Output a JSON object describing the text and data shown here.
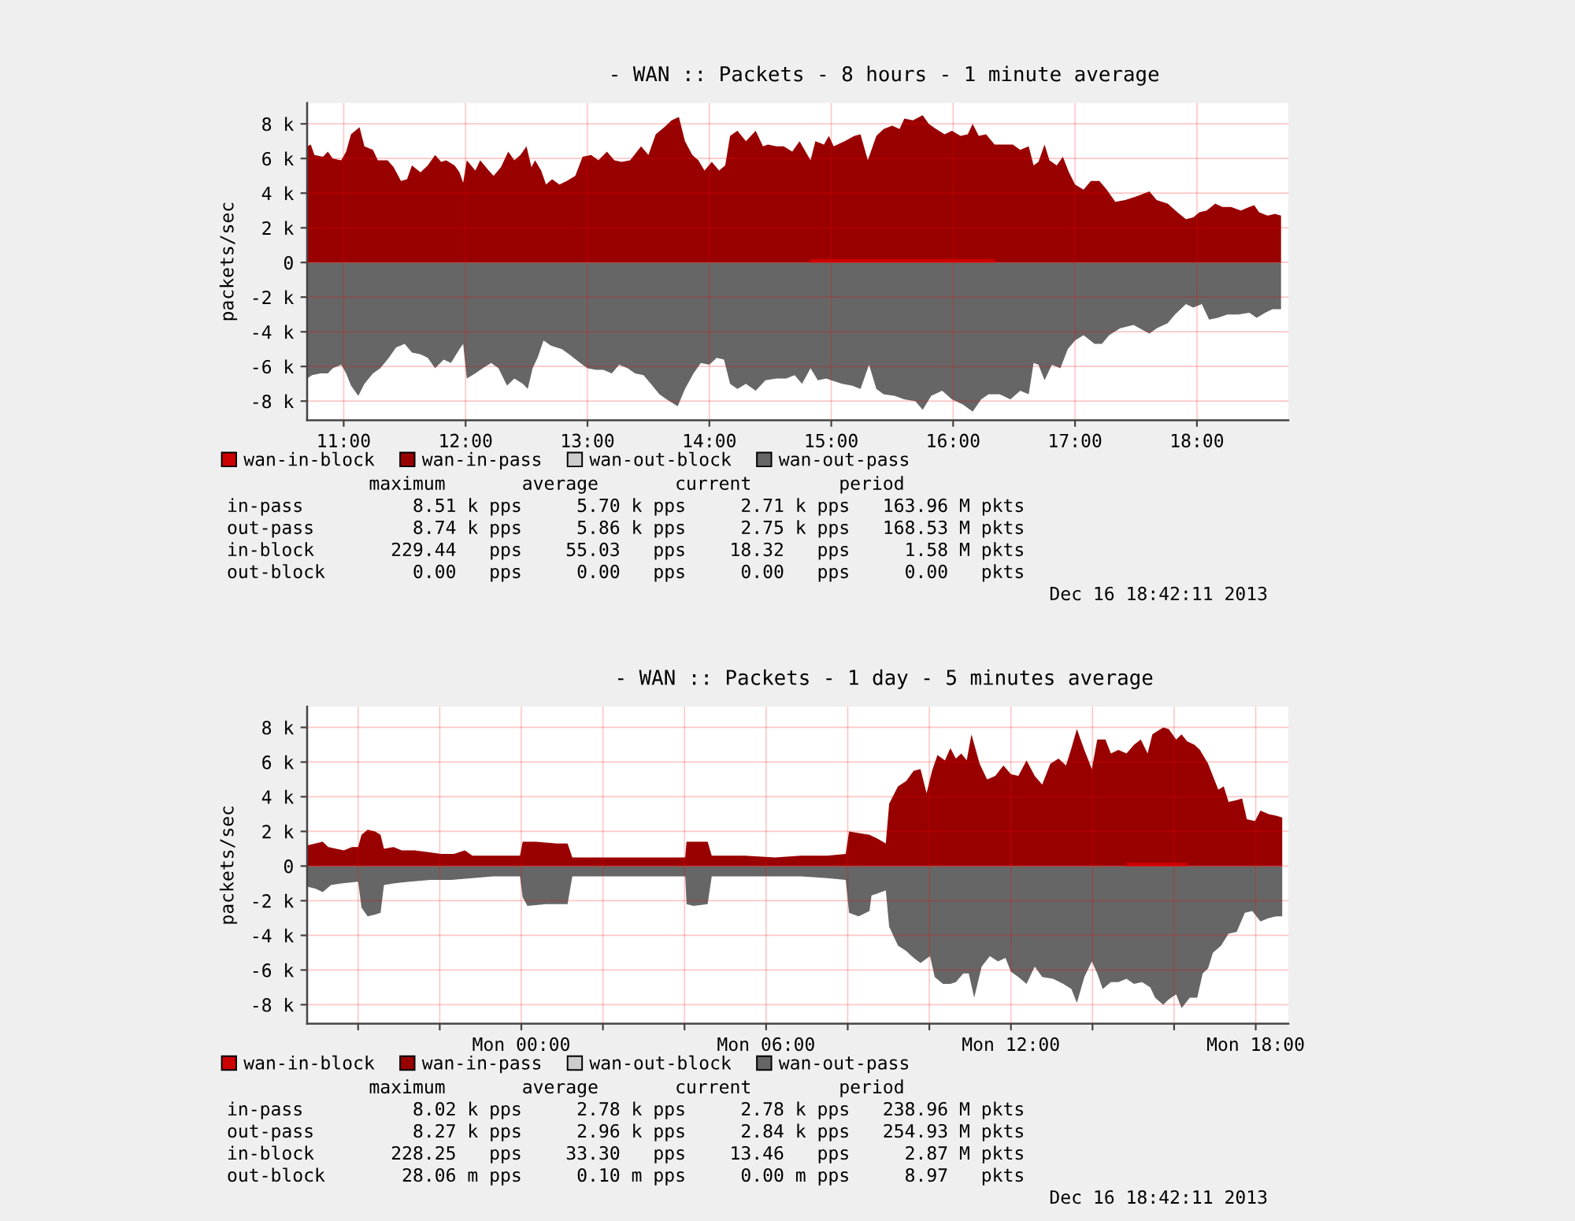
{
  "chart_data": [
    {
      "type": "area",
      "title": "- WAN :: Packets - 8 hours - 1 minute average",
      "ylabel": "packets/sec",
      "xlim": [
        10.7,
        18.75
      ],
      "xticks": [
        {
          "value": 11,
          "label": "11:00"
        },
        {
          "value": 12,
          "label": "12:00"
        },
        {
          "value": 13,
          "label": "13:00"
        },
        {
          "value": 14,
          "label": "14:00"
        },
        {
          "value": 15,
          "label": "15:00"
        },
        {
          "value": 16,
          "label": "16:00"
        },
        {
          "value": 17,
          "label": "17:00"
        },
        {
          "value": 18,
          "label": "18:00"
        }
      ],
      "ylim": [
        -9100,
        9200
      ],
      "yticks": [
        {
          "value": -8000,
          "label": "-8 k"
        },
        {
          "value": -6000,
          "label": "-6 k"
        },
        {
          "value": -4000,
          "label": "-4 k"
        },
        {
          "value": -2000,
          "label": "-2 k"
        },
        0,
        {
          "value": 2000,
          "label": "2 k"
        },
        {
          "value": 4000,
          "label": "4 k"
        },
        {
          "value": 6000,
          "label": "6 k"
        },
        {
          "value": 8000,
          "label": "8 k"
        }
      ],
      "grid": true,
      "legend": "bottom",
      "series": [
        {
          "name": "wan-in-block",
          "color": "#cc0000",
          "x": [
            10.7,
            14.82,
            14.83,
            16.34,
            16.35,
            18.69
          ],
          "values": [
            0,
            0,
            200,
            200,
            0,
            0
          ]
        },
        {
          "name": "wan-in-pass",
          "color": "#990000",
          "x": [
            10.7,
            10.73,
            10.76,
            10.83,
            10.87,
            10.91,
            10.98,
            11.02,
            11.06,
            11.13,
            11.17,
            11.24,
            11.28,
            11.36,
            11.41,
            11.47,
            11.52,
            11.56,
            11.63,
            11.69,
            11.75,
            11.8,
            11.84,
            11.91,
            11.95,
            11.98,
            12.01,
            12.08,
            12.12,
            12.19,
            12.23,
            12.29,
            12.35,
            12.4,
            12.45,
            12.5,
            12.54,
            12.57,
            12.62,
            12.66,
            12.71,
            12.77,
            12.83,
            12.9,
            12.96,
            13.03,
            13.09,
            13.16,
            13.22,
            13.28,
            13.35,
            13.44,
            13.5,
            13.56,
            13.63,
            13.69,
            13.75,
            13.8,
            13.86,
            13.91,
            13.96,
            14.02,
            14.08,
            14.13,
            14.17,
            14.23,
            14.3,
            14.38,
            14.44,
            14.48,
            14.55,
            14.61,
            14.68,
            14.74,
            14.83,
            14.87,
            14.94,
            14.98,
            15.02,
            15.11,
            15.19,
            15.24,
            15.3,
            15.37,
            15.43,
            15.5,
            15.56,
            15.6,
            15.67,
            15.75,
            15.8,
            15.86,
            15.93,
            15.99,
            16.06,
            16.12,
            16.16,
            16.21,
            16.27,
            16.34,
            16.42,
            16.49,
            16.55,
            16.62,
            16.66,
            16.7,
            16.75,
            16.79,
            16.85,
            16.9,
            16.95,
            17.0,
            17.07,
            17.13,
            17.2,
            17.26,
            17.33,
            17.41,
            17.5,
            17.61,
            17.67,
            17.76,
            17.84,
            17.91,
            17.97,
            18.02,
            18.08,
            18.15,
            18.21,
            18.28,
            18.36,
            18.43,
            18.47,
            18.51,
            18.58,
            18.64,
            18.69
          ],
          "values": [
            6700,
            6800,
            6200,
            6100,
            6400,
            6000,
            5900,
            6400,
            7400,
            7800,
            6700,
            6500,
            5900,
            5900,
            5500,
            4700,
            4800,
            5600,
            5200,
            5600,
            6200,
            5800,
            5900,
            5600,
            5200,
            4600,
            5900,
            5300,
            5900,
            5300,
            5000,
            5500,
            6400,
            5900,
            6200,
            6700,
            5500,
            5900,
            5300,
            4500,
            4800,
            4500,
            4700,
            5000,
            6100,
            6200,
            5900,
            6400,
            5900,
            5800,
            5900,
            6700,
            6200,
            7400,
            7800,
            8200,
            8400,
            7000,
            6200,
            5900,
            5300,
            5800,
            5300,
            5600,
            7300,
            7600,
            7000,
            7600,
            6700,
            6800,
            6700,
            6700,
            6400,
            7000,
            5900,
            7000,
            6800,
            7300,
            6700,
            7000,
            7300,
            7400,
            5900,
            7300,
            7700,
            7900,
            7700,
            8300,
            8200,
            8500,
            8000,
            7700,
            7400,
            7600,
            7300,
            7400,
            8000,
            7300,
            7400,
            6800,
            6800,
            6800,
            6500,
            6700,
            5600,
            5800,
            6800,
            5900,
            5600,
            6100,
            5200,
            4500,
            4200,
            4700,
            4700,
            4200,
            3500,
            3600,
            3800,
            4100,
            3600,
            3400,
            2900,
            2500,
            2600,
            2900,
            3000,
            3400,
            3200,
            3200,
            3000,
            3200,
            3300,
            2900,
            2700,
            2800,
            2700
          ]
        },
        {
          "name": "wan-out-block",
          "color": "#cccccc"
        },
        {
          "name": "wan-out-pass",
          "color": "#666666",
          "x": [
            10.7,
            10.74,
            10.81,
            10.87,
            10.91,
            10.98,
            11.02,
            11.06,
            11.12,
            11.17,
            11.24,
            11.3,
            11.37,
            11.43,
            11.5,
            11.56,
            11.63,
            11.69,
            11.75,
            11.82,
            11.88,
            11.95,
            11.98,
            12.01,
            12.08,
            12.14,
            12.21,
            12.27,
            12.34,
            12.4,
            12.47,
            12.51,
            12.55,
            12.59,
            12.64,
            12.7,
            12.79,
            12.85,
            12.94,
            13.0,
            13.07,
            13.13,
            13.2,
            13.26,
            13.33,
            13.39,
            13.46,
            13.52,
            13.59,
            13.65,
            13.74,
            13.8,
            13.87,
            13.93,
            14.0,
            14.06,
            14.12,
            14.17,
            14.23,
            14.3,
            14.38,
            14.46,
            14.55,
            14.63,
            14.7,
            14.76,
            14.83,
            14.89,
            14.96,
            15.0,
            15.09,
            15.17,
            15.24,
            15.31,
            15.37,
            15.43,
            15.52,
            15.6,
            15.69,
            15.75,
            15.82,
            15.91,
            15.99,
            16.08,
            16.16,
            16.23,
            16.29,
            16.38,
            16.47,
            16.55,
            16.62,
            16.66,
            16.7,
            16.75,
            16.81,
            16.88,
            16.94,
            17.0,
            17.07,
            17.16,
            17.22,
            17.28,
            17.37,
            17.48,
            17.61,
            17.67,
            17.76,
            17.82,
            17.91,
            17.97,
            18.04,
            18.1,
            18.17,
            18.25,
            18.34,
            18.43,
            18.49,
            18.56,
            18.62,
            18.69
          ],
          "values": [
            -6700,
            -6500,
            -6400,
            -6400,
            -6100,
            -5900,
            -6400,
            -7100,
            -7700,
            -7000,
            -6400,
            -6100,
            -5500,
            -4900,
            -4700,
            -5200,
            -5300,
            -5500,
            -6100,
            -5600,
            -5800,
            -5000,
            -4700,
            -6700,
            -6400,
            -6100,
            -5800,
            -6100,
            -7100,
            -6700,
            -7000,
            -7300,
            -6100,
            -5500,
            -4500,
            -4800,
            -5000,
            -5300,
            -5800,
            -6100,
            -6200,
            -6200,
            -6400,
            -5900,
            -6100,
            -6400,
            -6500,
            -7000,
            -7600,
            -7900,
            -8300,
            -7300,
            -6400,
            -5800,
            -5900,
            -5500,
            -5600,
            -7000,
            -7300,
            -7000,
            -7400,
            -6800,
            -6700,
            -6700,
            -6500,
            -7000,
            -6100,
            -6800,
            -6700,
            -6800,
            -7000,
            -7100,
            -7300,
            -5900,
            -7300,
            -7600,
            -7700,
            -7900,
            -8000,
            -8500,
            -7700,
            -7400,
            -7900,
            -8200,
            -8600,
            -7900,
            -7600,
            -7600,
            -7900,
            -7400,
            -7600,
            -5800,
            -5900,
            -6800,
            -5900,
            -6100,
            -5000,
            -4500,
            -4200,
            -4700,
            -4700,
            -4200,
            -3800,
            -3600,
            -4100,
            -3800,
            -3500,
            -3000,
            -2400,
            -2600,
            -2400,
            -3300,
            -3200,
            -3000,
            -3000,
            -2900,
            -3200,
            -2900,
            -2700,
            -2700
          ]
        }
      ],
      "annotations": [
        "             maximum       average       current        period",
        "in-pass          8.51 k pps     5.70 k pps     2.71 k pps   163.96 M pkts",
        "out-pass         8.74 k pps     5.86 k pps     2.75 k pps   168.53 M pkts",
        "in-block       229.44   pps    55.03   pps    18.32   pps     1.58 M pkts",
        "out-block        0.00   pps     0.00   pps     0.00   pps     0.00   pkts",
        "Dec 16 18:42:11 2013"
      ]
    },
    {
      "type": "area",
      "title": "- WAN :: Packets - 1 day - 5 minutes average",
      "ylabel": "packets/sec",
      "xlim": [
        "2013-12-15T18:45",
        "2013-12-16T18:48"
      ],
      "xticks": [
        {
          "value": "2013-12-15T20:00",
          "label": null
        },
        {
          "value": "2013-12-15T22:00",
          "label": null
        },
        {
          "value": "2013-12-16T00:00",
          "label": "Mon 00:00"
        },
        {
          "value": "2013-12-16T02:00",
          "label": null
        },
        {
          "value": "2013-12-16T04:00",
          "label": null
        },
        {
          "value": "2013-12-16T06:00",
          "label": "Mon 06:00"
        },
        {
          "value": "2013-12-16T08:00",
          "label": null
        },
        {
          "value": "2013-12-16T10:00",
          "label": null
        },
        {
          "value": "2013-12-16T12:00",
          "label": "Mon 12:00"
        },
        {
          "value": "2013-12-16T14:00",
          "label": null
        },
        {
          "value": "2013-12-16T16:00",
          "label": null
        },
        {
          "value": "2013-12-16T18:00",
          "label": "Mon 18:00"
        }
      ],
      "ylim": [
        -9100,
        9200
      ],
      "yticks": [
        {
          "value": -8000,
          "label": "-8 k"
        },
        {
          "value": -6000,
          "label": "-6 k"
        },
        {
          "value": -4000,
          "label": "-4 k"
        },
        {
          "value": -2000,
          "label": "-2 k"
        },
        0,
        {
          "value": 2000,
          "label": "2 k"
        },
        {
          "value": 4000,
          "label": "4 k"
        },
        {
          "value": 6000,
          "label": "6 k"
        },
        {
          "value": 8000,
          "label": "8 k"
        }
      ],
      "grid": true,
      "legend": "bottom",
      "series": [
        {
          "name": "wan-in-block",
          "color": "#cc0000",
          "x": [
            "2013-12-15T18:46",
            "2013-12-16T14:49",
            "2013-12-16T14:50",
            "2013-12-16T16:19",
            "2013-12-16T16:20",
            "2013-12-16T18:39"
          ],
          "values": [
            0,
            0,
            200,
            200,
            0,
            0
          ]
        },
        {
          "name": "wan-in-pass",
          "color": "#990000",
          "x": [
            "2013-12-15T18:46",
            "2013-12-15T18:57",
            "2013-12-15T19:08",
            "2013-12-15T19:16",
            "2013-12-15T19:28",
            "2013-12-15T19:39",
            "2013-12-15T19:51",
            "2013-12-15T20:00",
            "2013-12-15T20:05",
            "2013-12-15T20:14",
            "2013-12-15T20:25",
            "2013-12-15T20:33",
            "2013-12-15T20:38",
            "2013-12-15T20:52",
            "2013-12-15T21:04",
            "2013-12-15T21:23",
            "2013-12-15T21:43",
            "2013-12-15T22:02",
            "2013-12-15T22:21",
            "2013-12-15T22:37",
            "2013-12-15T22:48",
            "2013-12-15T23:11",
            "2013-12-15T23:35",
            "2013-12-15T23:58",
            "2013-12-16T00:02",
            "2013-12-16T00:21",
            "2013-12-16T00:52",
            "2013-12-16T01:08",
            "2013-12-16T01:15",
            "2013-12-16T01:38",
            "2013-12-16T02:17",
            "2013-12-16T02:55",
            "2013-12-16T03:34",
            "2013-12-16T04:01",
            "2013-12-16T04:03",
            "2013-12-16T04:20",
            "2013-12-16T04:34",
            "2013-12-16T04:40",
            "2013-12-16T05:07",
            "2013-12-16T05:29",
            "2013-12-16T06:13",
            "2013-12-16T06:51",
            "2013-12-16T07:30",
            "2013-12-16T07:57",
            "2013-12-16T08:02",
            "2013-12-16T08:16",
            "2013-12-16T08:32",
            "2013-12-16T08:43",
            "2013-12-16T08:56",
            "2013-12-16T09:01",
            "2013-12-16T09:14",
            "2013-12-16T09:26",
            "2013-12-16T09:37",
            "2013-12-16T09:47",
            "2013-12-16T09:56",
            "2013-12-16T10:04",
            "2013-12-16T10:12",
            "2013-12-16T10:23",
            "2013-12-16T10:31",
            "2013-12-16T10:39",
            "2013-12-16T10:47",
            "2013-12-16T10:55",
            "2013-12-16T11:02",
            "2013-12-16T11:14",
            "2013-12-16T11:25",
            "2013-12-16T11:37",
            "2013-12-16T11:49",
            "2013-12-16T12:00",
            "2013-12-16T12:11",
            "2013-12-16T12:23",
            "2013-12-16T12:35",
            "2013-12-16T12:46",
            "2013-12-16T12:58",
            "2013-12-16T13:10",
            "2013-12-16T13:21",
            "2013-12-16T13:29",
            "2013-12-16T13:37",
            "2013-12-16T13:48",
            "2013-12-16T13:59",
            "2013-12-16T14:07",
            "2013-12-16T14:19",
            "2013-12-16T14:27",
            "2013-12-16T14:38",
            "2013-12-16T14:50",
            "2013-12-16T15:01",
            "2013-12-16T15:11",
            "2013-12-16T15:21",
            "2013-12-16T15:28",
            "2013-12-16T15:36",
            "2013-12-16T15:44",
            "2013-12-16T15:52",
            "2013-12-16T16:03",
            "2013-12-16T16:11",
            "2013-12-16T16:19",
            "2013-12-16T16:30",
            "2013-12-16T16:38",
            "2013-12-16T16:50",
            "2013-12-16T16:57",
            "2013-12-16T17:05",
            "2013-12-16T17:13",
            "2013-12-16T17:20",
            "2013-12-16T17:32",
            "2013-12-16T17:40",
            "2013-12-16T17:47",
            "2013-12-16T17:59",
            "2013-12-16T18:07",
            "2013-12-16T18:19",
            "2013-12-16T18:30",
            "2013-12-16T18:39"
          ],
          "values": [
            1200,
            1300,
            1400,
            1100,
            1000,
            900,
            1100,
            1100,
            1800,
            2100,
            2000,
            1800,
            1000,
            1100,
            900,
            900,
            800,
            700,
            700,
            900,
            600,
            600,
            600,
            600,
            1400,
            1400,
            1300,
            1300,
            500,
            500,
            500,
            500,
            500,
            500,
            1400,
            1400,
            1400,
            600,
            600,
            600,
            500,
            600,
            600,
            700,
            2000,
            1900,
            1800,
            1600,
            1300,
            3600,
            4600,
            4900,
            5500,
            5600,
            4200,
            5500,
            6400,
            6100,
            6800,
            6200,
            6500,
            6100,
            7600,
            5900,
            5000,
            5200,
            5800,
            5300,
            5200,
            6100,
            5200,
            4700,
            5900,
            6200,
            5800,
            6800,
            7900,
            6700,
            5600,
            7300,
            7300,
            6500,
            6700,
            6500,
            7000,
            7300,
            6500,
            7600,
            7800,
            8000,
            7900,
            7300,
            7600,
            7200,
            7000,
            6700,
            5900,
            5200,
            4400,
            4600,
            3700,
            3800,
            3900,
            2700,
            2600,
            3200,
            3000,
            2900,
            2800
          ]
        },
        {
          "name": "wan-out-block",
          "color": "#cccccc"
        },
        {
          "name": "wan-out-pass",
          "color": "#666666",
          "x": [
            "2013-12-15T18:46",
            "2013-12-15T18:57",
            "2013-12-15T19:08",
            "2013-12-15T19:20",
            "2013-12-15T19:35",
            "2013-12-15T20:00",
            "2013-12-15T20:05",
            "2013-12-15T20:14",
            "2013-12-15T20:25",
            "2013-12-15T20:33",
            "2013-12-15T20:38",
            "2013-12-15T20:52",
            "2013-12-15T21:16",
            "2013-12-15T21:46",
            "2013-12-15T22:17",
            "2013-12-15T22:48",
            "2013-12-15T23:19",
            "2013-12-15T23:58",
            "2013-12-16T00:02",
            "2013-12-16T00:09",
            "2013-12-16T00:36",
            "2013-12-16T01:08",
            "2013-12-16T01:15",
            "2013-12-16T02:17",
            "2013-12-16T04:01",
            "2013-12-16T04:03",
            "2013-12-16T04:13",
            "2013-12-16T04:34",
            "2013-12-16T04:40",
            "2013-12-16T05:14",
            "2013-12-16T05:34",
            "2013-12-16T06:51",
            "2013-12-16T07:30",
            "2013-12-16T07:57",
            "2013-12-16T08:02",
            "2013-12-16T08:16",
            "2013-12-16T08:32",
            "2013-12-16T08:35",
            "2013-12-16T08:43",
            "2013-12-16T08:56",
            "2013-12-16T09:01",
            "2013-12-16T09:14",
            "2013-12-16T09:26",
            "2013-12-16T09:37",
            "2013-12-16T09:47",
            "2013-12-16T10:01",
            "2013-12-16T10:08",
            "2013-12-16T10:20",
            "2013-12-16T10:31",
            "2013-12-16T10:39",
            "2013-12-16T10:50",
            "2013-12-16T10:58",
            "2013-12-16T11:06",
            "2013-12-16T11:17",
            "2013-12-16T11:29",
            "2013-12-16T11:41",
            "2013-12-16T11:52",
            "2013-12-16T12:00",
            "2013-12-16T12:11",
            "2013-12-16T12:23",
            "2013-12-16T12:35",
            "2013-12-16T12:46",
            "2013-12-16T13:02",
            "2013-12-16T13:17",
            "2013-12-16T13:29",
            "2013-12-16T13:37",
            "2013-12-16T13:48",
            "2013-12-16T13:59",
            "2013-12-16T14:07",
            "2013-12-16T14:15",
            "2013-12-16T14:27",
            "2013-12-16T14:38",
            "2013-12-16T14:50",
            "2013-12-16T15:01",
            "2013-12-16T15:13",
            "2013-12-16T15:25",
            "2013-12-16T15:32",
            "2013-12-16T15:44",
            "2013-12-16T15:52",
            "2013-12-16T16:03",
            "2013-12-16T16:11",
            "2013-12-16T16:23",
            "2013-12-16T16:34",
            "2013-12-16T16:42",
            "2013-12-16T16:50",
            "2013-12-16T16:57",
            "2013-12-16T17:09",
            "2013-12-16T17:20",
            "2013-12-16T17:32",
            "2013-12-16T17:44",
            "2013-12-16T17:55",
            "2013-12-16T18:07",
            "2013-12-16T18:19",
            "2013-12-16T18:30",
            "2013-12-16T18:39"
          ],
          "values": [
            -1200,
            -1300,
            -1500,
            -1100,
            -1000,
            -900,
            -2400,
            -2900,
            -2800,
            -2700,
            -1100,
            -1000,
            -900,
            -800,
            -800,
            -700,
            -600,
            -600,
            -1800,
            -2300,
            -2200,
            -2200,
            -600,
            -600,
            -600,
            -2200,
            -2300,
            -2200,
            -600,
            -600,
            -600,
            -600,
            -700,
            -800,
            -2700,
            -2900,
            -2600,
            -1700,
            -1600,
            -1400,
            -3500,
            -4600,
            -4900,
            -5300,
            -5600,
            -5200,
            -6400,
            -6800,
            -6800,
            -6700,
            -6200,
            -6200,
            -7600,
            -5800,
            -5200,
            -5500,
            -5300,
            -6100,
            -6400,
            -6800,
            -5800,
            -6400,
            -6500,
            -6800,
            -7100,
            -7900,
            -6400,
            -5500,
            -6200,
            -7100,
            -6700,
            -6700,
            -6500,
            -6800,
            -6700,
            -7000,
            -7600,
            -8000,
            -7700,
            -7400,
            -8200,
            -7600,
            -7600,
            -6200,
            -5900,
            -5000,
            -4600,
            -3900,
            -3800,
            -2700,
            -2600,
            -3200,
            -3000,
            -2900,
            -2900
          ]
        }
      ],
      "annotations": [
        "             maximum       average       current        period",
        "in-pass          8.02 k pps     2.78 k pps     2.78 k pps   238.96 M pkts",
        "out-pass         8.27 k pps     2.96 k pps     2.84 k pps   254.93 M pkts",
        "in-block       228.25   pps    33.30   pps    13.46   pps     2.87 M pkts",
        "out-block       28.06 m pps     0.10 m pps     0.00 m pps     8.97   pkts",
        "Dec 16 18:42:11 2013"
      ]
    }
  ]
}
